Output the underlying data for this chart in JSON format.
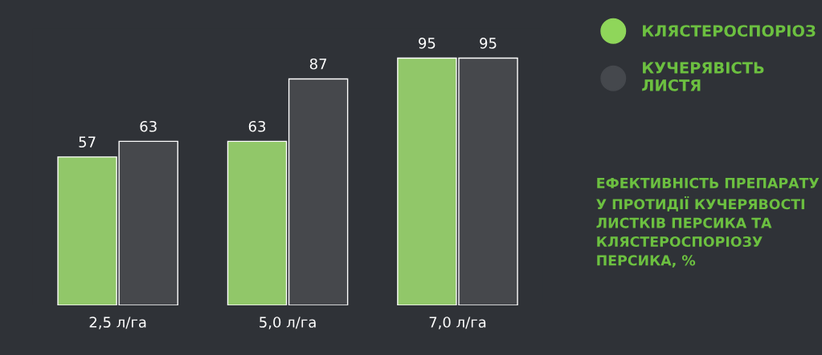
{
  "chart_data": {
    "type": "bar",
    "title": "ЕФЕКТИВНІСТЬ ПРЕПАРАТУ У ПРОТИДІЇ КУЧЕРЯВОСТІ ЛИСТКІВ ПЕРСИКА ТА КЛЯСТЕРОСПОРІОЗУ ПЕРСИКА, %",
    "categories": [
      "2,5 л/га",
      "5,0 л/га",
      "7,0 л/га"
    ],
    "series": [
      {
        "name": "КЛЯСТЕРОСПОРІОЗ",
        "color": "#8fd65a",
        "values": [
          57,
          63,
          95
        ]
      },
      {
        "name": "КУЧЕРЯВІСТЬ ЛИСТЯ",
        "color": "#45484d",
        "values": [
          63,
          87,
          95
        ]
      }
    ],
    "data_labels": true,
    "legend": "top right",
    "grid": false
  }
}
